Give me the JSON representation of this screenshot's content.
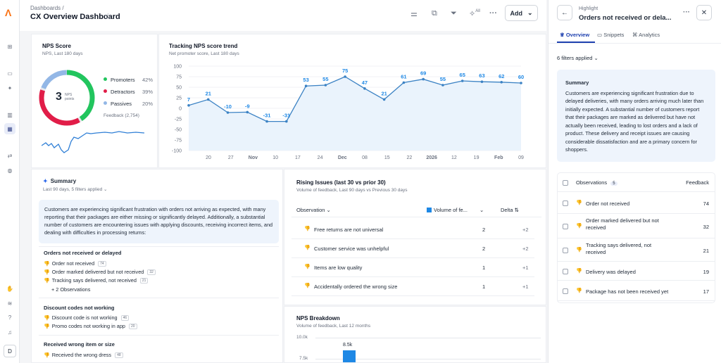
{
  "app": {
    "breadcrumb": "Dashboards /",
    "title": "CX Overview Dashboard",
    "add_label": "Add",
    "all_label": "All"
  },
  "nps": {
    "title": "NPS Score",
    "subtitle": "NPS, Last 180 days",
    "score": "3",
    "score_label": "NPS\npoints",
    "promoters_label": "Promoters",
    "promoters_pct": "42%",
    "detractors_label": "Detractors",
    "detractors_pct": "39%",
    "passives_label": "Passives",
    "passives_pct": "20%",
    "feedback": "Feedback (2,754)",
    "colors": {
      "promoters": "#22c55e",
      "detractors": "#e11d48",
      "passives": "#93b7e6"
    }
  },
  "trend": {
    "title": "Tracking NPS score trend",
    "subtitle": "Net promoter score, Last 180 days"
  },
  "chart_data": {
    "type": "line",
    "title": "Tracking NPS score trend",
    "ylim": [
      -100,
      100
    ],
    "yticks": [
      "100",
      "75",
      "50",
      "25",
      "0",
      "-25",
      "-50",
      "-75",
      "-100"
    ],
    "xticks": [
      "20",
      "27",
      "Nov",
      "10",
      "17",
      "24",
      "Dec",
      "08",
      "15",
      "22",
      "2026",
      "12",
      "19",
      "Feb",
      "09"
    ],
    "values": [
      7,
      21,
      -10,
      -9,
      -31,
      -31,
      53,
      55,
      75,
      47,
      21,
      61,
      69,
      55,
      65,
      63,
      62,
      60
    ],
    "point_labels": [
      "7",
      "21",
      "-10",
      "-9",
      "-31",
      "-31",
      "53",
      "55",
      "75",
      "47",
      "21",
      "61",
      "69",
      "55",
      "65",
      "63",
      "62",
      "60"
    ]
  },
  "summary": {
    "title": "Summary",
    "subtitle": "Last 90 days, 5 filters applied",
    "text": "Customers are experiencing significant frustration with orders not arriving as expected, with many reporting that their packages are either missing or significantly delayed. Additionally, a substantial number of customers are encountering issues with applying discounts, receiving incorrect items, and dealing with difficulties in processing returns:",
    "themes": [
      {
        "title": "Orders not received or delayed",
        "items": [
          {
            "label": "Order not received",
            "count": "74"
          },
          {
            "label": "Order marked delivered but not received",
            "count": "32"
          },
          {
            "label": "Tracking says delivered, not received",
            "count": "21"
          }
        ],
        "more": "+ 2 Observations"
      },
      {
        "title": "Discount codes not working",
        "items": [
          {
            "label": "Discount code is not working",
            "count": "46"
          },
          {
            "label": "Promo codes not working in app",
            "count": "20"
          }
        ]
      },
      {
        "title": "Received wrong item or size",
        "items": [
          {
            "label": "Received the wrong dress",
            "count": "48"
          }
        ]
      }
    ]
  },
  "rising": {
    "title": "Rising Issues (last 30 vs prior 30)",
    "subtitle": "Volume of feedback, Last 90 days vs Previous 30 days",
    "col_obs": "Observation",
    "col_vol": "Volume of fe...",
    "col_delta": "Delta",
    "rows": [
      {
        "label": "Free returns are not universal",
        "value": "2",
        "delta": "+2"
      },
      {
        "label": "Customer service was unhelpful",
        "value": "2",
        "delta": "+2"
      },
      {
        "label": "Items are low quality",
        "value": "1",
        "delta": "+1"
      },
      {
        "label": "Accidentally ordered the wrong size",
        "value": "1",
        "delta": "+1"
      }
    ]
  },
  "breakdown": {
    "title": "NPS Breakdown",
    "subtitle": "Volume of feedback, Last 12 months",
    "yticks": [
      "10.0k",
      "7.5k"
    ],
    "bar_label": "8.5k",
    "bar_value": 8500
  },
  "highlight": {
    "label": "Highlight",
    "title": "Orders not received or dela...",
    "tabs": [
      "Overview",
      "Snippets",
      "Analytics"
    ],
    "filters": "6 filters applied",
    "summary_title": "Summary",
    "summary_text": "Customers are experiencing significant frustration due to delayed deliveries, with many orders arriving much later than initially expected. A substantial number of customers report that their packages are marked as delivered but have not actually been received, leading to lost orders and a lack of product. These delivery and receipt issues are causing considerable dissatisfaction and are a primary concern for shoppers.",
    "obs_label": "Observations",
    "obs_count": "5",
    "feedback_label": "Feedback",
    "rows": [
      {
        "label": "Order not received",
        "value": "74"
      },
      {
        "label": "Order marked delivered but not received",
        "value": "32"
      },
      {
        "label": "Tracking says delivered, not received",
        "value": "21"
      },
      {
        "label": "Delivery was delayed",
        "value": "19"
      },
      {
        "label": "Package has not been received yet",
        "value": "17"
      }
    ]
  }
}
